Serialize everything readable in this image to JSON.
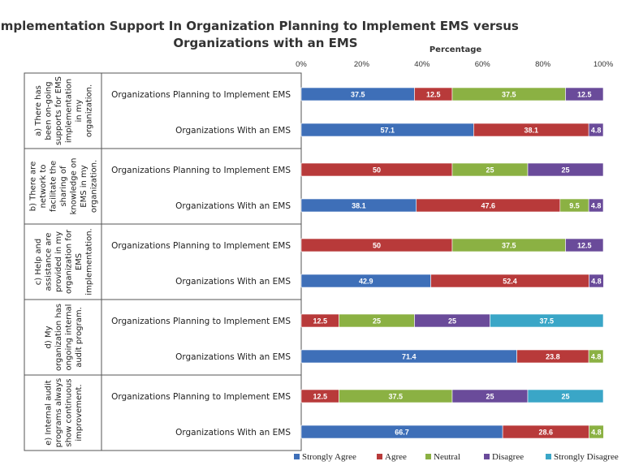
{
  "chart_data": {
    "type": "bar",
    "orientation": "horizontal",
    "stacked": true,
    "title_lines": [
      "Implementation Support In Organization Planning to Implement EMS versus",
      "Organizations with an EMS"
    ],
    "xlabel": "Percentage",
    "xlim": [
      0,
      100
    ],
    "x_ticks": [
      "0%",
      "20%",
      "40%",
      "60%",
      "80%",
      "100%"
    ],
    "legend_position": "bottom",
    "series_names": [
      "Strongly Agree",
      "Agree",
      "Neutral",
      "Disagree",
      "Strongly Disagree"
    ],
    "colors": [
      "#3e6fb8",
      "#b83a3a",
      "#8bb143",
      "#6a4b9a",
      "#3aa6c7"
    ],
    "groups": [
      {
        "question_lines": [
          "a) There has",
          "been on-going",
          "supports for EMS",
          "implementation",
          "in my",
          "organization."
        ],
        "bars": [
          {
            "label": "Organizations Planning to Implement EMS",
            "values": [
              37.5,
              12.5,
              37.5,
              12.5,
              0
            ]
          },
          {
            "label": "Organizations With an EMS",
            "values": [
              57.1,
              38.1,
              0,
              4.8,
              0
            ]
          }
        ]
      },
      {
        "question_lines": [
          "b) There are",
          "network to",
          "facilitate the",
          "sharing of",
          "knowledge on",
          "EMS in my",
          "organization."
        ],
        "bars": [
          {
            "label": "Organizations Planning to Implement EMS",
            "values": [
              0,
              50,
              25,
              25,
              0
            ]
          },
          {
            "label": "Organizations With an EMS",
            "values": [
              38.1,
              47.6,
              9.5,
              4.8,
              0
            ]
          }
        ]
      },
      {
        "question_lines": [
          "c) Help and",
          "assistance are",
          "provided in my",
          "organization for",
          "EMS",
          "implementation."
        ],
        "bars": [
          {
            "label": "Organizations Planning to Implement EMS",
            "values": [
              0,
              50,
              37.5,
              12.5,
              0
            ]
          },
          {
            "label": "Organizations With an EMS",
            "values": [
              42.9,
              52.4,
              0,
              4.8,
              0
            ]
          }
        ]
      },
      {
        "question_lines": [
          "d) My",
          "organization has",
          "ongoing internal",
          "audit program."
        ],
        "bars": [
          {
            "label": "Organizations Planning to Implement EMS",
            "values": [
              0,
              12.5,
              25,
              25,
              37.5
            ]
          },
          {
            "label": "Organizations With an EMS",
            "values": [
              71.4,
              23.8,
              4.8,
              0,
              0
            ]
          }
        ]
      },
      {
        "question_lines": [
          "e) Internal audit",
          "programs always",
          "show continuous",
          "improvement."
        ],
        "bars": [
          {
            "label": "Organizations Planning to Implement EMS",
            "values": [
              0,
              12.5,
              37.5,
              25,
              25
            ]
          },
          {
            "label": "Organizations With an EMS",
            "values": [
              66.7,
              28.6,
              4.8,
              0,
              0
            ]
          }
        ]
      }
    ]
  }
}
